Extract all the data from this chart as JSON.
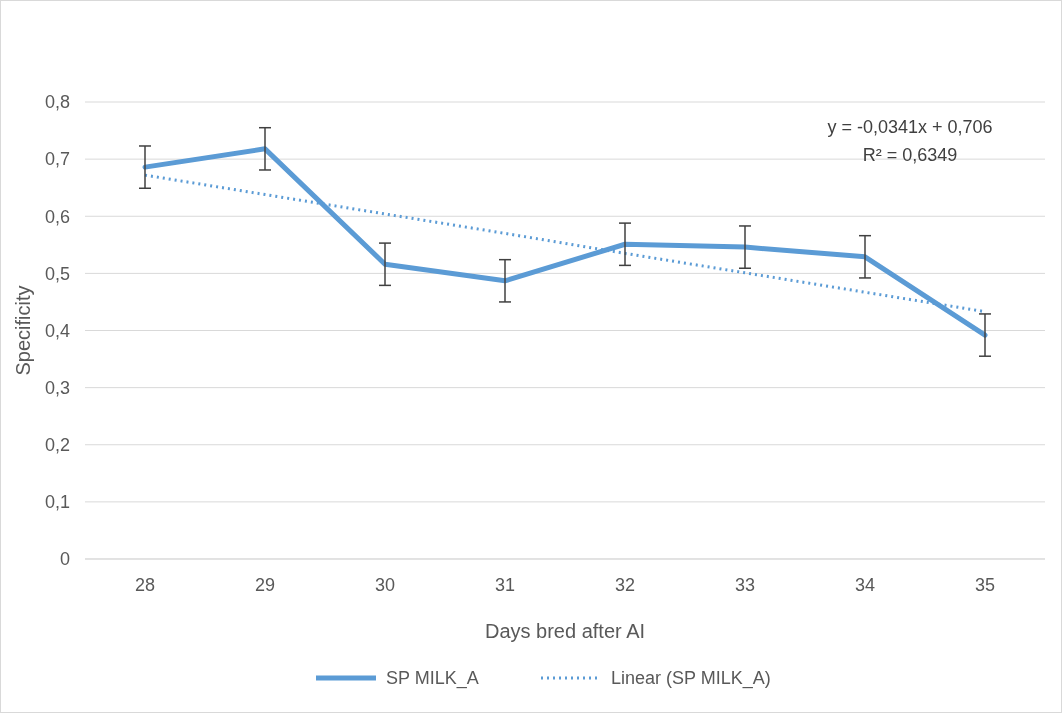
{
  "chart_data": {
    "type": "line",
    "xlabel": "Days bred after AI",
    "ylabel": "Specificity",
    "categories": [
      "28",
      "29",
      "30",
      "31",
      "32",
      "33",
      "34",
      "35"
    ],
    "series": [
      {
        "name": "SP MILK_A",
        "color": "#5b9bd5",
        "values": [
          0.686,
          0.718,
          0.516,
          0.487,
          0.551,
          0.546,
          0.529,
          0.392
        ],
        "errors": [
          0.037,
          0.037,
          0.037,
          0.037,
          0.037,
          0.037,
          0.037,
          0.037
        ],
        "line_style": "solid"
      },
      {
        "name": "Linear (SP MILK_A)",
        "color": "#5b9bd5",
        "values": [
          0.672,
          0.638,
          0.604,
          0.57,
          0.535,
          0.501,
          0.467,
          0.433
        ],
        "line_style": "dotted"
      }
    ],
    "ylim": [
      0,
      0.8
    ],
    "yticks": [
      0,
      {
        "value": 0.1,
        "label": "0,1"
      },
      {
        "value": 0.2,
        "label": "0,2"
      },
      {
        "value": 0.3,
        "label": "0,3"
      },
      {
        "value": 0.4,
        "label": "0,4"
      },
      {
        "value": 0.5,
        "label": "0,5"
      },
      {
        "value": 0.6,
        "label": "0,6"
      },
      {
        "value": 0.7,
        "label": "0,7"
      },
      {
        "value": 0.8,
        "label": "0,8"
      }
    ],
    "grid": "y",
    "legend": "bottom",
    "marker": "none",
    "annotations": [
      "y = -0,0341x + 0,706",
      "R² = 0,6349"
    ]
  }
}
